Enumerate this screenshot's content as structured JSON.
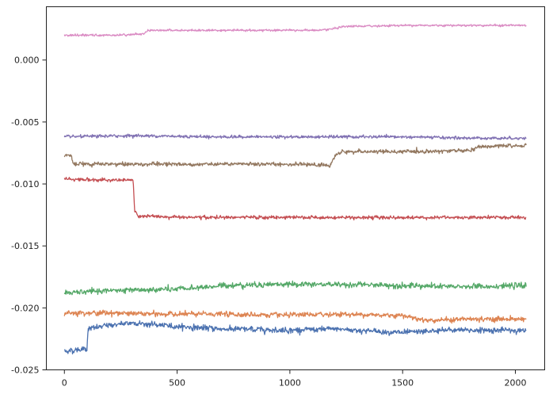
{
  "chart_data": {
    "type": "line",
    "title": "",
    "xlabel": "",
    "ylabel": "",
    "xlim": [
      -80,
      2130
    ],
    "ylim": [
      -0.025,
      0.0043
    ],
    "grid": false,
    "legend": "none",
    "x_ticks": [
      0,
      500,
      1000,
      1500,
      2000
    ],
    "x_tick_labels": [
      "0",
      "500",
      "1000",
      "1500",
      "2000"
    ],
    "y_ticks": [
      0.0,
      -0.005,
      -0.01,
      -0.015,
      -0.02,
      -0.025
    ],
    "y_tick_labels": [
      "0.000",
      "-0.005",
      "-0.010",
      "-0.015",
      "-0.020",
      "-0.025"
    ],
    "x_range": [
      0,
      2048
    ],
    "series": [
      {
        "color": "#4c72b0",
        "noise": 0.00013,
        "breakpoints": [
          [
            0,
            -0.0235
          ],
          [
            100,
            -0.0233
          ],
          [
            105,
            -0.0217
          ],
          [
            200,
            -0.0214
          ],
          [
            300,
            -0.0212
          ],
          [
            500,
            -0.0215
          ],
          [
            700,
            -0.0217
          ],
          [
            1000,
            -0.0218
          ],
          [
            1200,
            -0.0217
          ],
          [
            1500,
            -0.022
          ],
          [
            1700,
            -0.0218
          ],
          [
            2000,
            -0.0218
          ],
          [
            2048,
            -0.0219
          ]
        ]
      },
      {
        "color": "#dd8452",
        "noise": 0.00012,
        "breakpoints": [
          [
            0,
            -0.0204
          ],
          [
            200,
            -0.0204
          ],
          [
            400,
            -0.0205
          ],
          [
            700,
            -0.0205
          ],
          [
            1000,
            -0.0206
          ],
          [
            1200,
            -0.0205
          ],
          [
            1500,
            -0.0206
          ],
          [
            1600,
            -0.021
          ],
          [
            1800,
            -0.0209
          ],
          [
            2048,
            -0.0209
          ]
        ]
      },
      {
        "color": "#55a868",
        "noise": 0.00013,
        "breakpoints": [
          [
            0,
            -0.0188
          ],
          [
            200,
            -0.0186
          ],
          [
            500,
            -0.0185
          ],
          [
            700,
            -0.0182
          ],
          [
            900,
            -0.0181
          ],
          [
            1200,
            -0.0181
          ],
          [
            1500,
            -0.0182
          ],
          [
            1700,
            -0.0183
          ],
          [
            2048,
            -0.0182
          ]
        ]
      },
      {
        "color": "#c44e52",
        "noise": 8e-05,
        "breakpoints": [
          [
            0,
            -0.0096
          ],
          [
            200,
            -0.0097
          ],
          [
            305,
            -0.0097
          ],
          [
            312,
            -0.0122
          ],
          [
            330,
            -0.0126
          ],
          [
            600,
            -0.0127
          ],
          [
            1000,
            -0.0127
          ],
          [
            1300,
            -0.0127
          ],
          [
            1700,
            -0.0127
          ],
          [
            2048,
            -0.0127
          ]
        ]
      },
      {
        "color": "#8172b3",
        "noise": 7e-05,
        "breakpoints": [
          [
            0,
            -0.0062
          ],
          [
            300,
            -0.0061
          ],
          [
            700,
            -0.0062
          ],
          [
            1100,
            -0.0062
          ],
          [
            1500,
            -0.0062
          ],
          [
            1800,
            -0.0063
          ],
          [
            2048,
            -0.0063
          ]
        ]
      },
      {
        "color": "#937860",
        "noise": 9e-05,
        "breakpoints": [
          [
            0,
            -0.0077
          ],
          [
            30,
            -0.0077
          ],
          [
            40,
            -0.0084
          ],
          [
            300,
            -0.0084
          ],
          [
            700,
            -0.0084
          ],
          [
            1000,
            -0.0084
          ],
          [
            1180,
            -0.0085
          ],
          [
            1200,
            -0.0077
          ],
          [
            1230,
            -0.0074
          ],
          [
            1500,
            -0.0074
          ],
          [
            1800,
            -0.0073
          ],
          [
            1840,
            -0.007
          ],
          [
            2048,
            -0.0069
          ]
        ]
      },
      {
        "color": "#da8bc3",
        "noise": 5e-05,
        "breakpoints": [
          [
            0,
            0.002
          ],
          [
            200,
            0.002
          ],
          [
            350,
            0.0021
          ],
          [
            370,
            0.0024
          ],
          [
            700,
            0.0024
          ],
          [
            1150,
            0.0024
          ],
          [
            1250,
            0.0027
          ],
          [
            1500,
            0.0028
          ],
          [
            1800,
            0.0028
          ],
          [
            2048,
            0.0028
          ]
        ]
      }
    ]
  }
}
